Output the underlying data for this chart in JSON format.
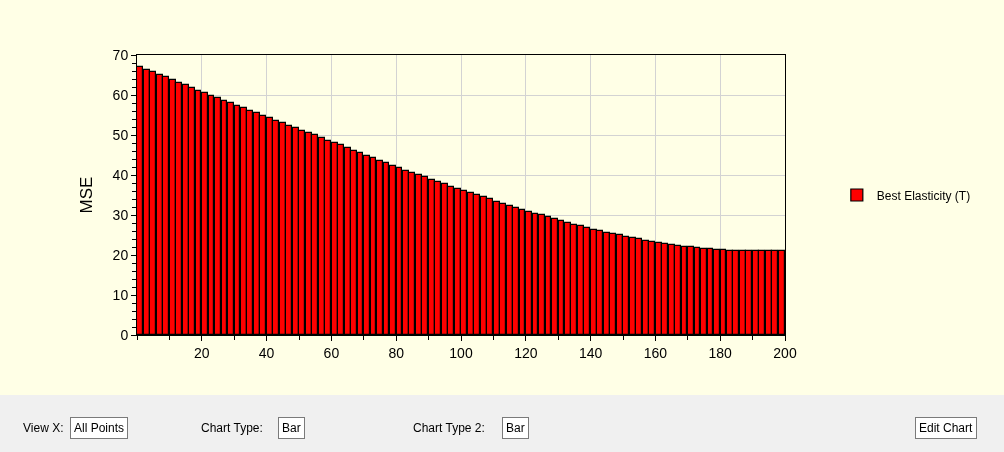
{
  "chart_data": {
    "type": "bar",
    "ylabel": "MSE",
    "x": [
      1,
      3,
      5,
      7,
      9,
      11,
      13,
      15,
      17,
      19,
      21,
      23,
      25,
      27,
      29,
      31,
      33,
      35,
      37,
      39,
      41,
      43,
      45,
      47,
      49,
      51,
      53,
      55,
      57,
      59,
      61,
      63,
      65,
      67,
      69,
      71,
      73,
      75,
      77,
      79,
      81,
      83,
      85,
      87,
      89,
      91,
      93,
      95,
      97,
      99,
      101,
      103,
      105,
      107,
      109,
      111,
      113,
      115,
      117,
      119,
      121,
      123,
      125,
      127,
      129,
      131,
      133,
      135,
      137,
      139,
      141,
      143,
      145,
      147,
      149,
      151,
      153,
      155,
      157,
      159,
      161,
      163,
      165,
      167,
      169,
      171,
      173,
      175,
      177,
      179,
      181,
      183,
      185,
      187,
      189,
      191,
      193,
      195,
      197,
      199
    ],
    "series": [
      {
        "name": "Best Elasticity (T)",
        "color": "#ff0000",
        "values": [
          67,
          66.3,
          65.7,
          65.0,
          64.4,
          63.7,
          63.0,
          62.4,
          61.7,
          61.0,
          60.4,
          59.8,
          59.2,
          58.5,
          57.9,
          57.3,
          56.7,
          56.1,
          55.4,
          54.8,
          54.2,
          53.6,
          53.0,
          52.3,
          51.7,
          51.1,
          50.5,
          49.9,
          49.2,
          48.6,
          48.0,
          47.4,
          46.7,
          46.1,
          45.5,
          44.8,
          44.2,
          43.6,
          42.9,
          42.3,
          41.7,
          41.1,
          40.6,
          40.0,
          39.4,
          38.8,
          38.2,
          37.7,
          37.1,
          36.5,
          35.9,
          35.4,
          34.9,
          34.4,
          33.9,
          33.3,
          32.8,
          32.3,
          31.8,
          31.3,
          30.8,
          30.3,
          29.9,
          29.4,
          29.0,
          28.5,
          28.1,
          27.6,
          27.2,
          26.7,
          26.3,
          26.0,
          25.6,
          25.3,
          24.9,
          24.6,
          24.2,
          23.9,
          23.5,
          23.2,
          22.9,
          22.7,
          22.5,
          22.3,
          22.1,
          21.9,
          21.7,
          21.5,
          21.4,
          21.3,
          21.2,
          21.1,
          21.0,
          21.0,
          21.0,
          21.0,
          21.0,
          21.0,
          21.0,
          21.0
        ]
      }
    ],
    "xlim": [
      0,
      200
    ],
    "xticks": [
      20,
      40,
      60,
      80,
      100,
      120,
      140,
      160,
      180,
      200
    ],
    "ylim": [
      0,
      70
    ],
    "yticks": [
      0,
      10,
      20,
      30,
      40,
      50,
      60,
      70
    ],
    "grid": true,
    "legend": "right",
    "annotations": [
      "View X:",
      "All Points",
      "Chart Type:",
      "Bar",
      "Chart Type 2:",
      "Bar",
      "Edit Chart"
    ]
  }
}
